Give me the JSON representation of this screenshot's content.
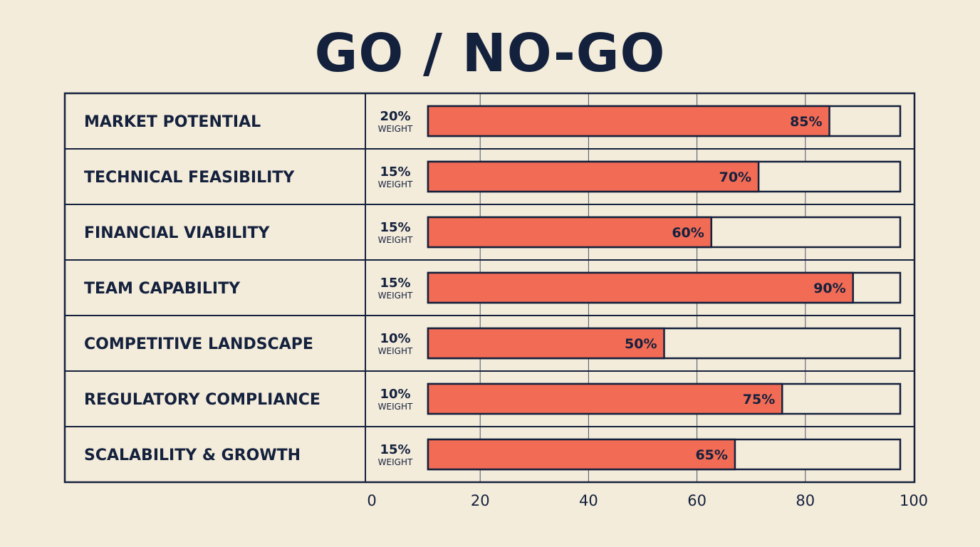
{
  "title": "GO / NO-GO",
  "chart_data": {
    "type": "bar",
    "orientation": "horizontal",
    "categories": [
      "MARKET POTENTIAL",
      "TECHNICAL FEASIBILITY",
      "FINANCIAL VIABILITY",
      "TEAM CAPABILITY",
      "COMPETITIVE LANDSCAPE",
      "REGULATORY COMPLIANCE",
      "SCALABILITY & GROWTH"
    ],
    "weights": [
      "20%",
      "15%",
      "15%",
      "15%",
      "10%",
      "10%",
      "15%"
    ],
    "weight_label": "WEIGHT",
    "values": [
      85,
      70,
      60,
      90,
      50,
      75,
      65
    ],
    "value_labels": [
      "85%",
      "70%",
      "60%",
      "90%",
      "50%",
      "75%",
      "65%"
    ],
    "xlim": [
      0,
      100
    ],
    "xticks": [
      0,
      20,
      40,
      60,
      80,
      100
    ],
    "grid": true,
    "colors": {
      "bar": "#f26b55",
      "border": "#14213d",
      "background": "#f4ecdb"
    }
  }
}
